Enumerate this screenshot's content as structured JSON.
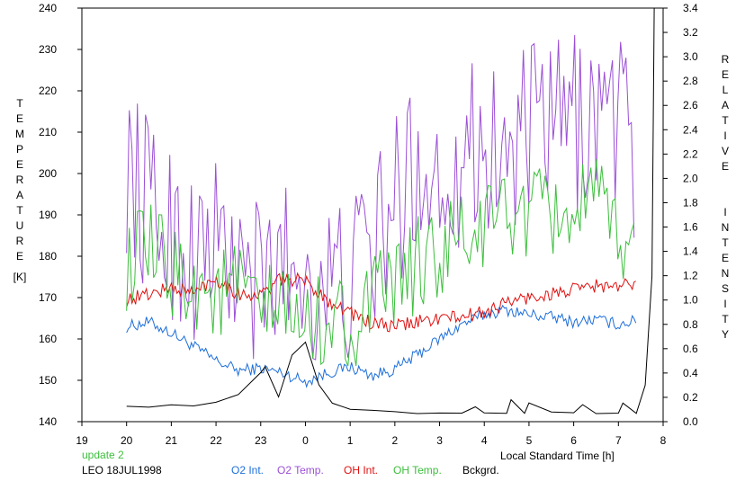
{
  "chart_data": {
    "type": "line",
    "left_axis": {
      "label": "TEMPERATURE",
      "unit": "[K]",
      "ylim": [
        140,
        240
      ],
      "ticks": [
        140,
        150,
        160,
        170,
        180,
        190,
        200,
        210,
        220,
        230,
        240
      ]
    },
    "right_axis": {
      "label": "RELATIVE INTENSITY",
      "ylim": [
        0.0,
        3.4
      ],
      "ticks": [
        "0.0",
        "0.2",
        "0.4",
        "0.6",
        "0.8",
        "1.0",
        "1.2",
        "1.4",
        "1.6",
        "1.8",
        "2.0",
        "2.2",
        "2.4",
        "2.6",
        "2.8",
        "3.0",
        "3.2",
        "3.4"
      ]
    },
    "x_axis": {
      "label": "Local Standard Time [h]",
      "ticks": [
        "19",
        "20",
        "21",
        "22",
        "23",
        "0",
        "1",
        "2",
        "3",
        "4",
        "5",
        "6",
        "7",
        "8"
      ],
      "xlim": [
        19,
        32
      ]
    },
    "grid": false,
    "legend_placement": "bottom",
    "series": [
      {
        "name": "O2 Int.",
        "axis": "right",
        "color": "#1e6fd9",
        "x": [
          20,
          20.5,
          21,
          21.5,
          22,
          22.5,
          23,
          23.5,
          24,
          24.5,
          25,
          25.5,
          26,
          26.5,
          27,
          27.5,
          28,
          28.5,
          29,
          29.5,
          30,
          30.5,
          31,
          31.4
        ],
        "y": [
          0.78,
          0.82,
          0.73,
          0.62,
          0.5,
          0.42,
          0.44,
          0.4,
          0.33,
          0.4,
          0.45,
          0.38,
          0.43,
          0.55,
          0.68,
          0.8,
          0.88,
          0.92,
          0.88,
          0.86,
          0.82,
          0.84,
          0.8,
          0.83
        ]
      },
      {
        "name": "O2 Temp.",
        "axis": "left",
        "color": "#9b4fd6",
        "x": [
          20,
          20.5,
          21,
          21.5,
          22,
          22.5,
          23,
          23.5,
          24,
          24.5,
          25,
          25.5,
          26,
          26.5,
          27,
          27.5,
          28,
          28.5,
          29,
          29.5,
          30,
          30.5,
          31,
          31.4
        ],
        "y": [
          202,
          192,
          186,
          180,
          183,
          176,
          172,
          179,
          176,
          172,
          174,
          182,
          192,
          203,
          198,
          205,
          208,
          203,
          210,
          211,
          212,
          215,
          214,
          204
        ]
      },
      {
        "name": "OH Int.",
        "axis": "right",
        "color": "#e01010",
        "x": [
          20,
          20.5,
          21,
          21.5,
          22,
          22.5,
          23,
          23.5,
          24,
          24.5,
          25,
          25.5,
          26,
          26.5,
          27,
          27.5,
          28,
          28.5,
          29,
          29.5,
          30,
          30.5,
          31,
          31.4
        ],
        "y": [
          1.0,
          1.05,
          1.1,
          1.06,
          1.18,
          1.05,
          1.04,
          1.18,
          1.15,
          1.0,
          0.9,
          0.8,
          0.78,
          0.82,
          0.85,
          0.86,
          0.9,
          0.98,
          1.02,
          1.05,
          1.08,
          1.12,
          1.1,
          1.15
        ]
      },
      {
        "name": "OH Temp.",
        "axis": "left",
        "color": "#3cbf3c",
        "x": [
          20,
          20.5,
          21,
          21.5,
          22,
          22.5,
          23,
          23.5,
          24,
          24.5,
          25,
          25.5,
          26,
          26.5,
          27,
          27.5,
          28,
          28.5,
          29,
          29.5,
          30,
          30.5,
          31,
          31.4
        ],
        "y": [
          178,
          181,
          176,
          174,
          170,
          173,
          165,
          168,
          162,
          166,
          163,
          168,
          173,
          178,
          180,
          184,
          186,
          192,
          189,
          190,
          191,
          192,
          185,
          181
        ]
      },
      {
        "name": "Bckgrd.",
        "axis": "right",
        "color": "#000000",
        "x": [
          20,
          20.5,
          21,
          21.5,
          22,
          22.5,
          23,
          23.1,
          23.4,
          23.7,
          24,
          24.3,
          24.6,
          25,
          25.5,
          26,
          26.5,
          27,
          27.5,
          27.8,
          28,
          28.5,
          28.6,
          28.9,
          29,
          29.5,
          30,
          30.2,
          30.5,
          31,
          31.1,
          31.4,
          31.6,
          31.75,
          31.8
        ],
        "y": [
          0.13,
          0.12,
          0.14,
          0.13,
          0.16,
          0.22,
          0.4,
          0.45,
          0.2,
          0.55,
          0.65,
          0.3,
          0.15,
          0.1,
          0.09,
          0.08,
          0.07,
          0.07,
          0.07,
          0.12,
          0.07,
          0.07,
          0.18,
          0.07,
          0.15,
          0.08,
          0.07,
          0.14,
          0.07,
          0.07,
          0.15,
          0.07,
          0.3,
          1.2,
          3.4
        ]
      }
    ]
  },
  "legend": {
    "status": "update 2",
    "site_date": "LEO 18JUL1998",
    "items": [
      {
        "label": "O2 Int.",
        "color": "#1e6fd9"
      },
      {
        "label": "O2 Temp.",
        "color": "#9b4fd6"
      },
      {
        "label": "OH Int.",
        "color": "#e01010"
      },
      {
        "label": "OH Temp.",
        "color": "#3cbf3c"
      },
      {
        "label": "Bckgrd.",
        "color": "#000000"
      }
    ]
  }
}
